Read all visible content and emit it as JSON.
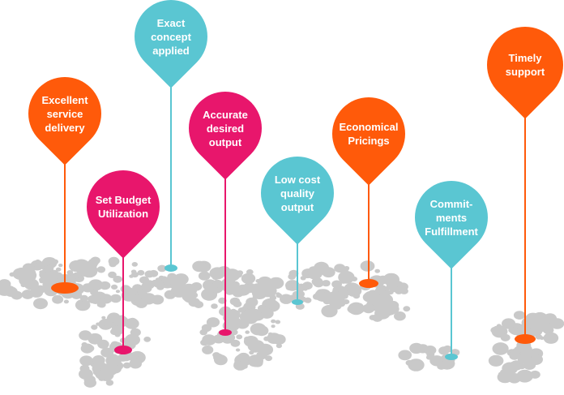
{
  "colors": {
    "orange": "#FF5A0A",
    "pink": "#E8166C",
    "teal": "#5AC6D2",
    "map": "#C9C9C9"
  },
  "pins": [
    {
      "label": "Exact\nconcept\napplied",
      "color": "teal"
    },
    {
      "label": "Excellent\nservice\ndelivery",
      "color": "orange"
    },
    {
      "label": "Set Budget\nUtilization",
      "color": "pink"
    },
    {
      "label": "Accurate\ndesired\noutput",
      "color": "pink"
    },
    {
      "label": "Low cost\nquality\noutput",
      "color": "teal"
    },
    {
      "label": "Economical\nPricings",
      "color": "orange"
    },
    {
      "label": "Commit-\nments\nFulfillment",
      "color": "teal"
    },
    {
      "label": "Timely\nsupport",
      "color": "orange"
    }
  ]
}
